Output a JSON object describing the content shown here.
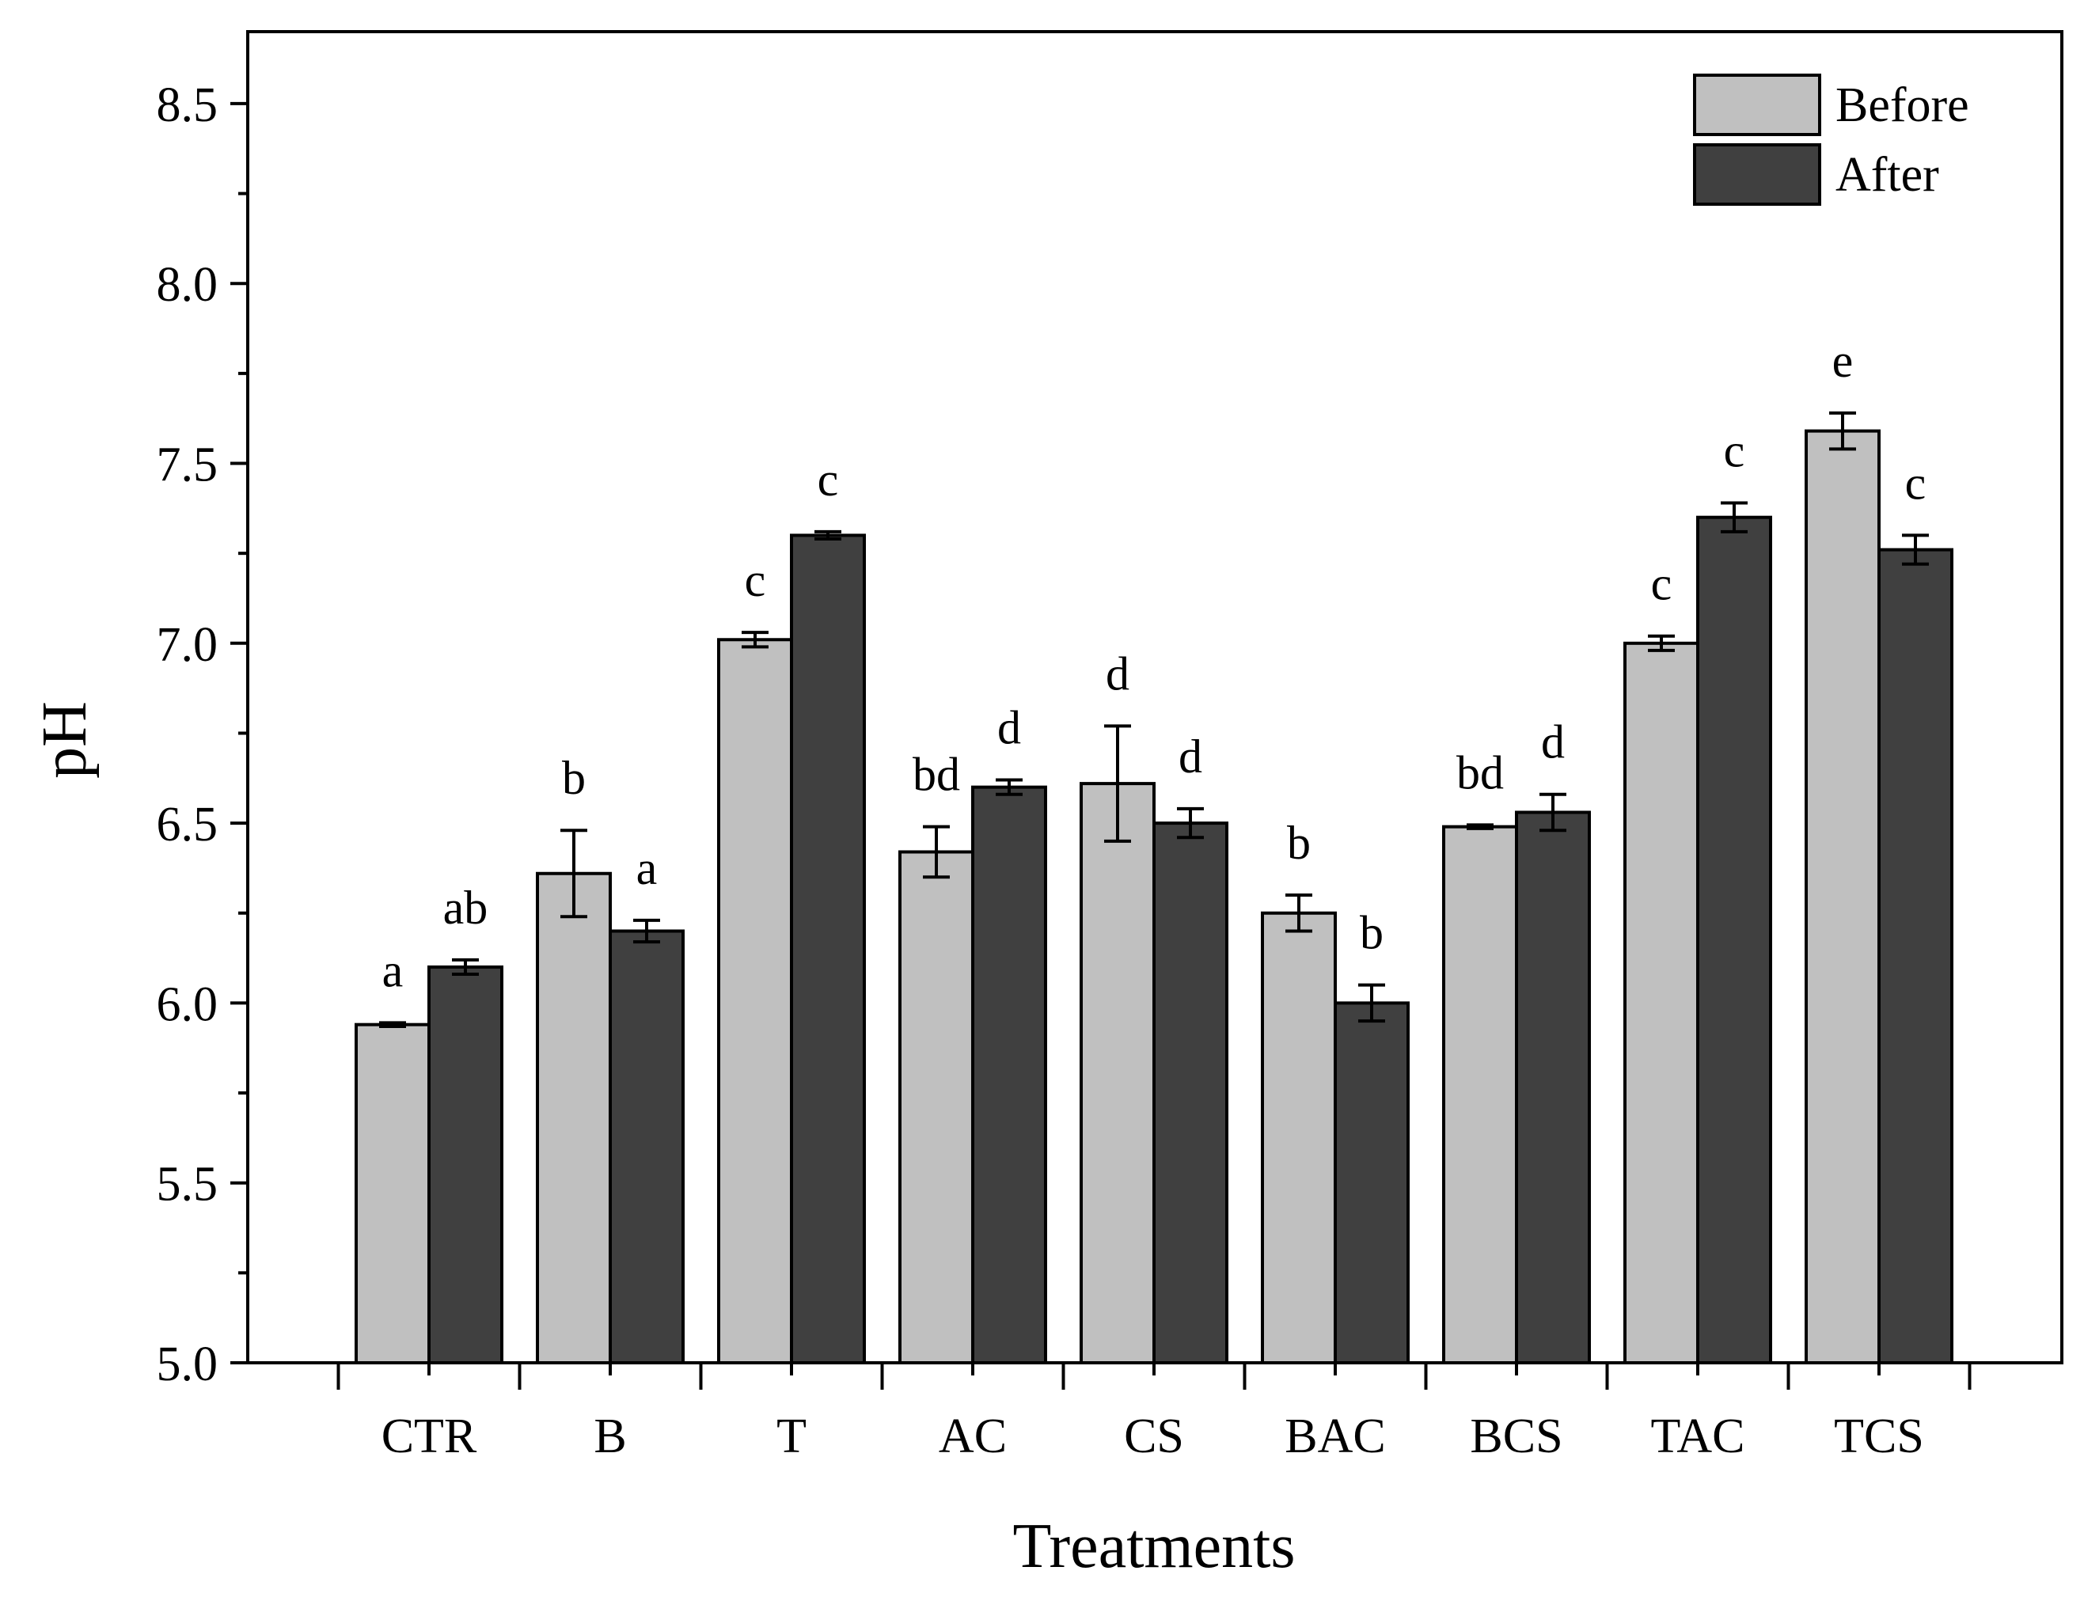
{
  "chart_data": {
    "type": "bar",
    "title": "",
    "xlabel": "Treatments",
    "ylabel": "pH",
    "ylim": [
      5.0,
      8.7
    ],
    "yticks": [
      "5.0",
      "5.5",
      "6.0",
      "6.5",
      "7.0",
      "7.5",
      "8.0",
      "8.5"
    ],
    "grid": false,
    "legend_position": "top-right",
    "categories": [
      "CTR",
      "B",
      "T",
      "AC",
      "CS",
      "BAC",
      "BCS",
      "TAC",
      "TCS"
    ],
    "series": [
      {
        "name": "Before",
        "color": "#c0c0c0",
        "values": [
          5.94,
          6.36,
          7.01,
          6.42,
          6.61,
          6.25,
          6.49,
          7.0,
          7.59
        ],
        "errors": [
          0.005,
          0.12,
          0.02,
          0.07,
          0.16,
          0.05,
          0.005,
          0.02,
          0.05
        ],
        "letters": [
          "a",
          "b",
          "c",
          "bd",
          "d",
          "b",
          "bd",
          "c",
          "e"
        ]
      },
      {
        "name": "After",
        "color": "#404040",
        "values": [
          6.1,
          6.2,
          7.3,
          6.6,
          6.5,
          6.0,
          6.53,
          7.35,
          7.26
        ],
        "errors": [
          0.02,
          0.03,
          0.01,
          0.02,
          0.04,
          0.05,
          0.05,
          0.04,
          0.04
        ],
        "letters": [
          "ab",
          "a",
          "c",
          "d",
          "d",
          "b",
          "d",
          "c",
          "c"
        ]
      }
    ]
  }
}
